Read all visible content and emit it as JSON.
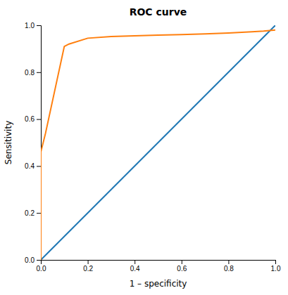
{
  "chart_data": {
    "type": "line",
    "title": "ROC curve",
    "x_label": "1 – specificity",
    "y_label": "Sensitivity",
    "series": [
      {
        "x": [
          0.0,
          1.0
        ],
        "values": [
          0.0,
          1.0
        ]
      },
      {
        "x": [
          0.0,
          0.0,
          0.02,
          0.1,
          0.12,
          0.2,
          0.3,
          0.4,
          0.5,
          0.6,
          0.7,
          0.8,
          0.9,
          0.95,
          1.0
        ],
        "values": [
          0.0,
          0.46,
          0.54,
          0.91,
          0.92,
          0.945,
          0.952,
          0.955,
          0.958,
          0.96,
          0.963,
          0.967,
          0.972,
          0.975,
          0.98
        ]
      }
    ],
    "xlim": [
      0.0,
      1.0
    ],
    "ylim": [
      0.0,
      1.0
    ],
    "xticks": [
      {
        "value": 0.0,
        "label": "0.0"
      },
      0.2,
      0.4,
      0.6,
      0.8,
      {
        "value": 1.0,
        "label": "1.0"
      }
    ],
    "yticks": [
      {
        "value": 0.0,
        "label": "0.0"
      },
      0.2,
      0.4,
      0.6,
      0.8,
      {
        "value": 1.0,
        "label": "1.0"
      }
    ]
  }
}
